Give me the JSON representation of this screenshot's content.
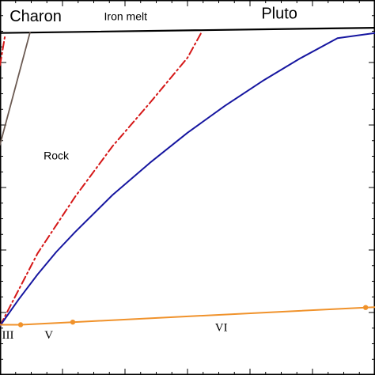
{
  "chart_data": {
    "type": "line",
    "title": "",
    "xlabel": "",
    "ylabel": "",
    "xlim": [
      0,
      100
    ],
    "ylim": [
      0,
      100
    ],
    "grid": false,
    "legend": "none",
    "series": [
      {
        "style": "solid",
        "color": "#000000",
        "x": [
          0,
          100
        ],
        "y": [
          91.2,
          92.6
        ]
      },
      {
        "style": "solid",
        "color": "#6b5a52",
        "x": [
          0,
          8.0
        ],
        "y": [
          61.4,
          91.3
        ]
      },
      {
        "style": "dash-dot",
        "color": "#d51818",
        "x": [
          0,
          1.3
        ],
        "y": [
          82.6,
          90.3
        ]
      },
      {
        "style": "dash-dot",
        "color": "#d51818",
        "x": [
          0,
          10,
          20,
          30,
          40,
          50,
          53.7
        ],
        "y": [
          13.1,
          32.4,
          47.5,
          61.0,
          72.6,
          84.6,
          91.3
        ]
      },
      {
        "style": "solid",
        "color": "#1616a0",
        "x": [
          0,
          5,
          10,
          15,
          20,
          30,
          40,
          50,
          60,
          70,
          80,
          90,
          100
        ],
        "y": [
          13.1,
          20.2,
          26.8,
          32.8,
          38.1,
          48.0,
          56.6,
          64.6,
          71.8,
          78.4,
          84.4,
          89.8,
          91.2
        ]
      },
      {
        "style": "solid",
        "color": "#f0922b",
        "marker": "circle",
        "x": [
          0,
          5.5,
          19.4,
          97.5,
          100
        ],
        "y": [
          13.4,
          13.4,
          14.1,
          18.0,
          18.1
        ],
        "marker_x": [
          5.5,
          19.4,
          97.5
        ],
        "marker_y": [
          13.4,
          14.1,
          18.0
        ]
      }
    ],
    "annotations": [
      {
        "text": "Charon",
        "x": 9.5,
        "y": 94.3,
        "size": "large"
      },
      {
        "text": "Iron melt",
        "x": 33.5,
        "y": 94.6,
        "size": "small"
      },
      {
        "text": "Pluto",
        "x": 74.5,
        "y": 95.0,
        "size": "large"
      },
      {
        "text": "Rock",
        "x": 15.0,
        "y": 57.5,
        "size": "small"
      },
      {
        "text": "III",
        "x": 2.1,
        "y": 9.7,
        "size": "roman"
      },
      {
        "text": "V",
        "x": 13.0,
        "y": 9.7,
        "size": "roman"
      },
      {
        "text": "VI",
        "x": 59.0,
        "y": 11.7,
        "size": "roman"
      }
    ]
  }
}
